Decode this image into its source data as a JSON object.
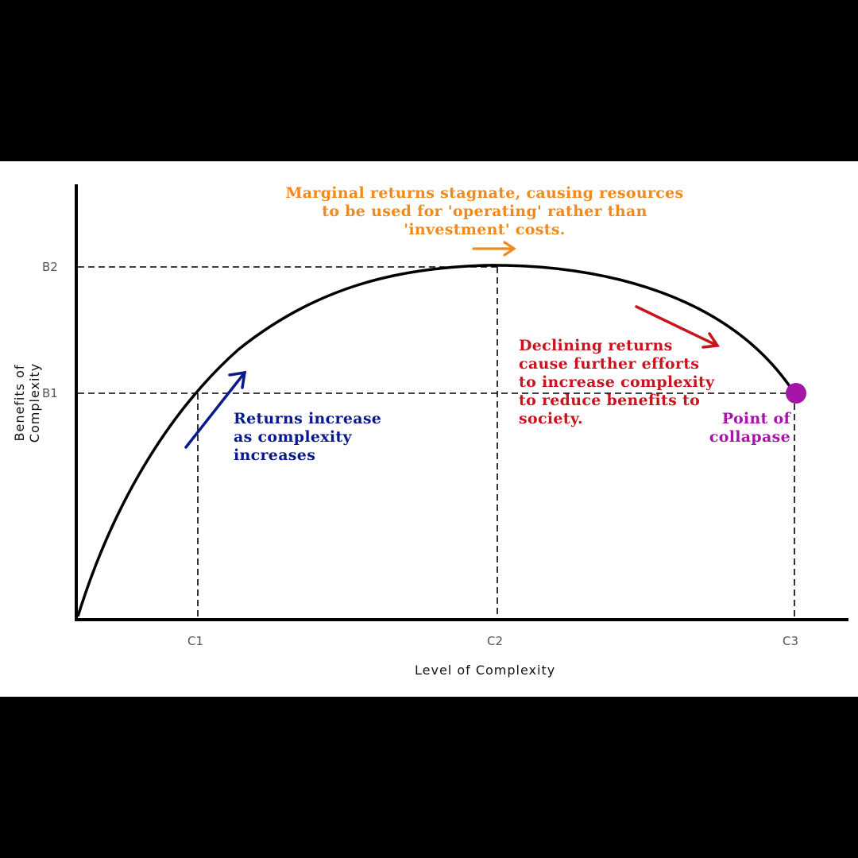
{
  "axes": {
    "x_title": "Level of Complexity",
    "y_title": "Benefits of Complexity",
    "x_ticks": [
      "C1",
      "C2",
      "C3"
    ],
    "y_ticks": [
      "B2",
      "B1"
    ]
  },
  "annotations": {
    "stagnate": "Marginal returns stagnate, causing resources\nto be used for 'operating' rather than\n'investment' costs.",
    "increase": "Returns increase\nas complexity\nincreases",
    "declining": "Declining returns\ncause further efforts\nto increase complexity\nto reduce benefits to\nsociety.",
    "collapse": "Point of\ncollapase"
  },
  "colors": {
    "background": "#000000",
    "panel": "#ffffff",
    "curve": "#000000",
    "increase": "#0a1a8c",
    "stagnate": "#f08a1c",
    "declining": "#c8141e",
    "collapse": "#a516a8"
  },
  "icons": [
    "arrow-up-right-icon",
    "arrow-right-icon",
    "arrow-down-right-icon",
    "collapse-point-dot"
  ]
}
